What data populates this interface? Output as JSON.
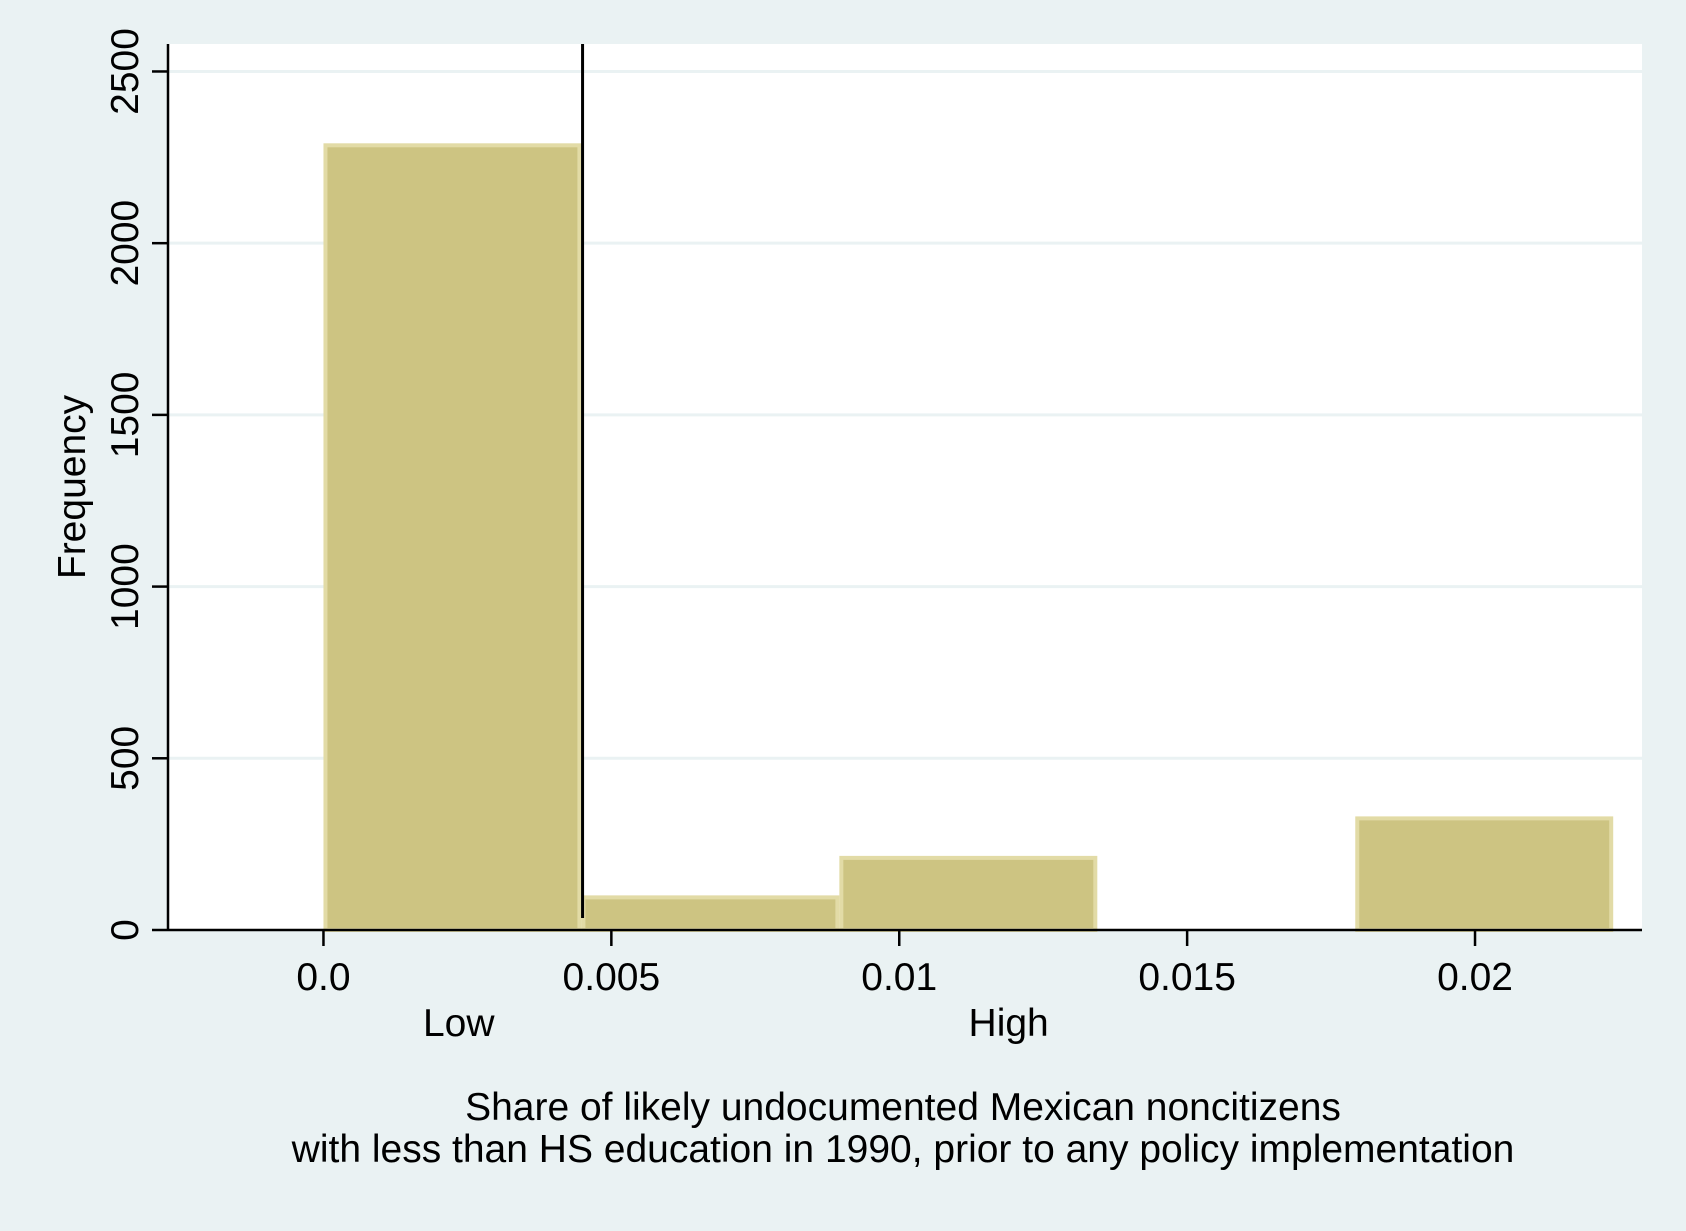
{
  "chart_data": {
    "type": "bar",
    "subtype": "histogram",
    "title": "",
    "ylabel": "Frequency",
    "xlabel_lines": [
      "Share of likely undocumented Mexican noncitizens",
      "with less than HS education in 1990, prior to any policy implementation"
    ],
    "xlim": [
      -0.0027,
      0.0229
    ],
    "ylim": [
      0,
      2580
    ],
    "x_ticks": [
      {
        "value": 0.0,
        "label": "0.0"
      },
      {
        "value": 0.005,
        "label": "0.005"
      },
      {
        "value": 0.01,
        "label": "0.01"
      },
      {
        "value": 0.015,
        "label": "0.015"
      },
      {
        "value": 0.02,
        "label": "0.02"
      }
    ],
    "y_ticks": [
      {
        "value": 0,
        "label": "0"
      },
      {
        "value": 500,
        "label": "500"
      },
      {
        "value": 1000,
        "label": "1000"
      },
      {
        "value": 1500,
        "label": "1500"
      },
      {
        "value": 2000,
        "label": "2000"
      },
      {
        "value": 2500,
        "label": "2500"
      }
    ],
    "bins": [
      {
        "x0": 0.0,
        "x1": 0.00448,
        "frequency": 2285
      },
      {
        "x0": 0.00448,
        "x1": 0.00896,
        "frequency": 95
      },
      {
        "x0": 0.00896,
        "x1": 0.01344,
        "frequency": 210
      },
      {
        "x0": 0.01344,
        "x1": 0.01792,
        "frequency": 0
      },
      {
        "x0": 0.01792,
        "x1": 0.0224,
        "frequency": 325
      }
    ],
    "threshold_line": {
      "x": 0.0045
    },
    "group_labels": [
      {
        "text": "Low",
        "x": 0.00235
      },
      {
        "text": "High",
        "x": 0.0119
      }
    ],
    "grid": true,
    "legend": "none",
    "colors": {
      "background": "#eaf2f3",
      "plot_area": "#ffffff",
      "bar_fill": "#cdc482",
      "bar_edge": "#e2dba6",
      "gridline": "#eaf2f3",
      "axis": "#000000",
      "threshold_line": "#000000"
    }
  }
}
